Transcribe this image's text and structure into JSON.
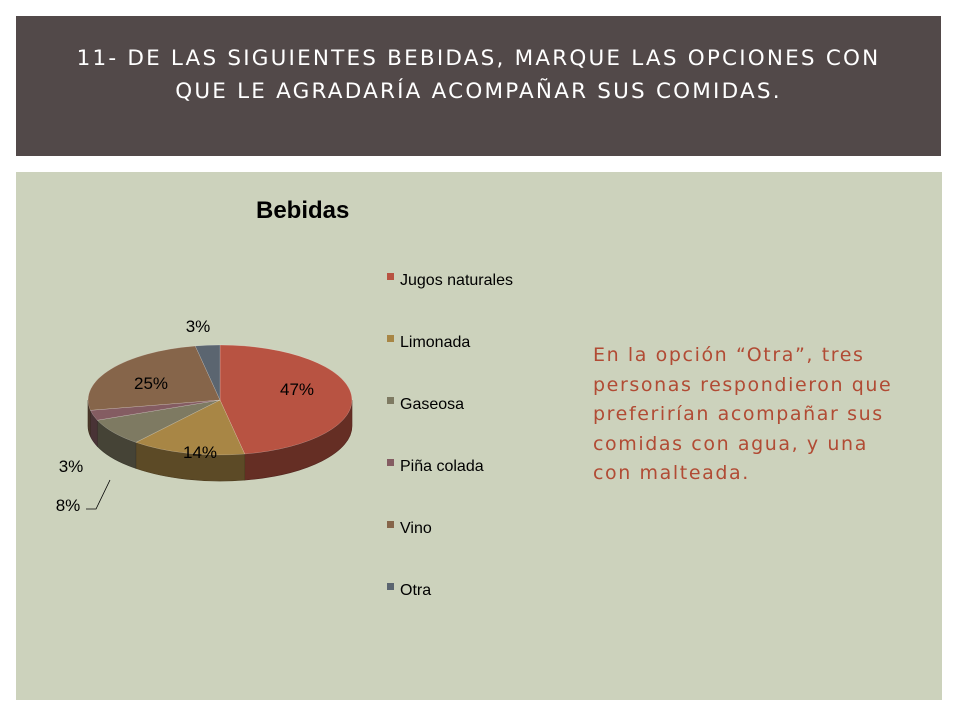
{
  "slide": {
    "title": "11- De las siguientes bebidas, marque las opciones con que le agradaría acompañar sus comidas.",
    "note": "En la opción “Otra”, tres personas respondieron que preferirían acompañar sus comidas con agua, y una con malteada."
  },
  "colors": {
    "title_bar": "#524949",
    "panel": "#ccd2bc",
    "note_text": "#b14b34"
  },
  "chart_data": {
    "type": "pie",
    "title": "Bebidas",
    "legend_position": "right",
    "categories": [
      "Jugos naturales",
      "Limonada",
      "Gaseosa",
      "Piña colada",
      "Vino",
      "Otra"
    ],
    "values": [
      47,
      14,
      8,
      3,
      25,
      3
    ],
    "labels": [
      "47%",
      "14%",
      "8%",
      "3%",
      "25%",
      "3%"
    ],
    "colors": [
      "#b85342",
      "#a88645",
      "#7e7a62",
      "#845c62",
      "#86654a",
      "#5b6570"
    ]
  }
}
